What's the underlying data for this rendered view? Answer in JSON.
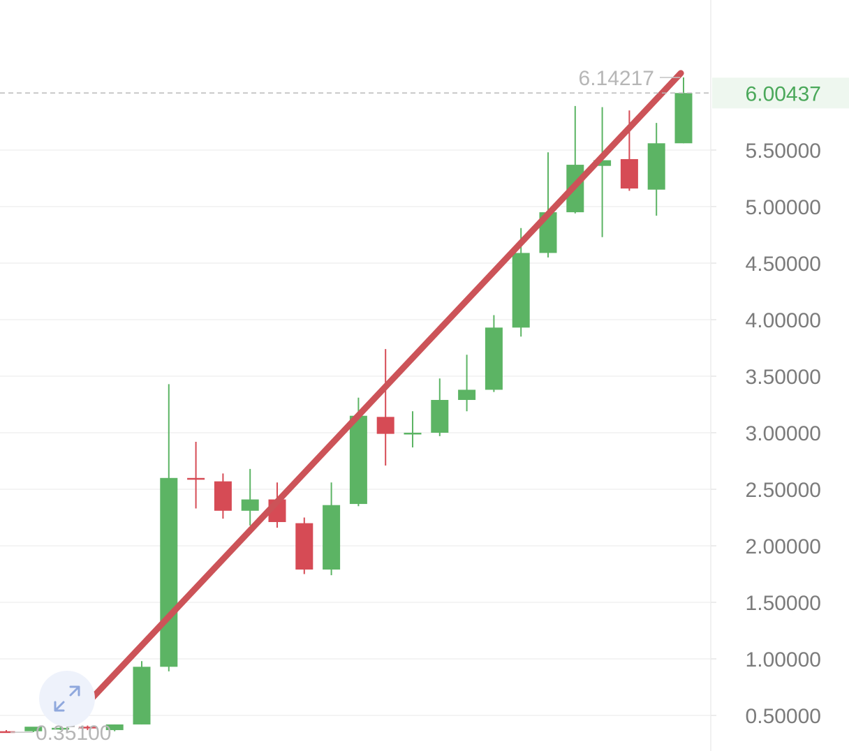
{
  "chart_data": {
    "type": "candlestick",
    "yticks": [
      "0.50000",
      "1.00000",
      "1.50000",
      "2.00000",
      "2.50000",
      "3.00000",
      "3.50000",
      "4.00000",
      "4.50000",
      "5.00000",
      "5.50000"
    ],
    "current_price": "6.00437",
    "high_label": "6.14217",
    "low_label": "0.35100",
    "colors": {
      "up": "#5cb464",
      "down": "#d64b55",
      "trend": "#cc5358",
      "current_bg": "#eef7ef",
      "current_text": "#4aa85a"
    },
    "candles": [
      {
        "o": 0.36,
        "h": 0.37,
        "l": 0.351,
        "c": 0.355
      },
      {
        "o": 0.36,
        "h": 0.38,
        "l": 0.352,
        "c": 0.4
      },
      {
        "o": 0.38,
        "h": 0.4,
        "l": 0.37,
        "c": 0.39
      },
      {
        "o": 0.4,
        "h": 0.41,
        "l": 0.37,
        "c": 0.39
      },
      {
        "o": 0.37,
        "h": 0.42,
        "l": 0.36,
        "c": 0.42
      },
      {
        "o": 0.42,
        "h": 0.98,
        "l": 0.42,
        "c": 0.93
      },
      {
        "o": 0.93,
        "h": 3.43,
        "l": 0.89,
        "c": 2.6
      },
      {
        "o": 2.6,
        "h": 2.92,
        "l": 2.33,
        "c": 2.59
      },
      {
        "o": 2.57,
        "h": 2.64,
        "l": 2.24,
        "c": 2.31
      },
      {
        "o": 2.31,
        "h": 2.68,
        "l": 2.18,
        "c": 2.41
      },
      {
        "o": 2.41,
        "h": 2.56,
        "l": 2.16,
        "c": 2.21
      },
      {
        "o": 2.2,
        "h": 2.25,
        "l": 1.75,
        "c": 1.79
      },
      {
        "o": 1.79,
        "h": 2.56,
        "l": 1.74,
        "c": 2.36
      },
      {
        "o": 2.37,
        "h": 3.31,
        "l": 2.35,
        "c": 3.15
      },
      {
        "o": 3.14,
        "h": 3.74,
        "l": 2.71,
        "c": 2.99
      },
      {
        "o": 2.99,
        "h": 3.19,
        "l": 2.87,
        "c": 3.0
      },
      {
        "o": 3.0,
        "h": 3.48,
        "l": 2.97,
        "c": 3.29
      },
      {
        "o": 3.29,
        "h": 3.69,
        "l": 3.19,
        "c": 3.38
      },
      {
        "o": 3.38,
        "h": 4.04,
        "l": 3.36,
        "c": 3.93
      },
      {
        "o": 3.93,
        "h": 4.81,
        "l": 3.85,
        "c": 4.59
      },
      {
        "o": 4.59,
        "h": 5.48,
        "l": 4.55,
        "c": 4.95
      },
      {
        "o": 4.95,
        "h": 5.89,
        "l": 4.94,
        "c": 5.37
      },
      {
        "o": 5.36,
        "h": 5.88,
        "l": 4.73,
        "c": 5.41
      },
      {
        "o": 5.42,
        "h": 5.85,
        "l": 5.14,
        "c": 5.16
      },
      {
        "o": 5.15,
        "h": 5.74,
        "l": 4.92,
        "c": 5.56
      },
      {
        "o": 5.56,
        "h": 6.14217,
        "l": 5.56,
        "c": 6.00437
      }
    ],
    "trendline": [
      {
        "i": 3,
        "y": 0.61
      },
      {
        "i": 24.9,
        "y": 6.18
      }
    ]
  },
  "controls": {
    "expand_icon": "expand-arrows-icon"
  }
}
